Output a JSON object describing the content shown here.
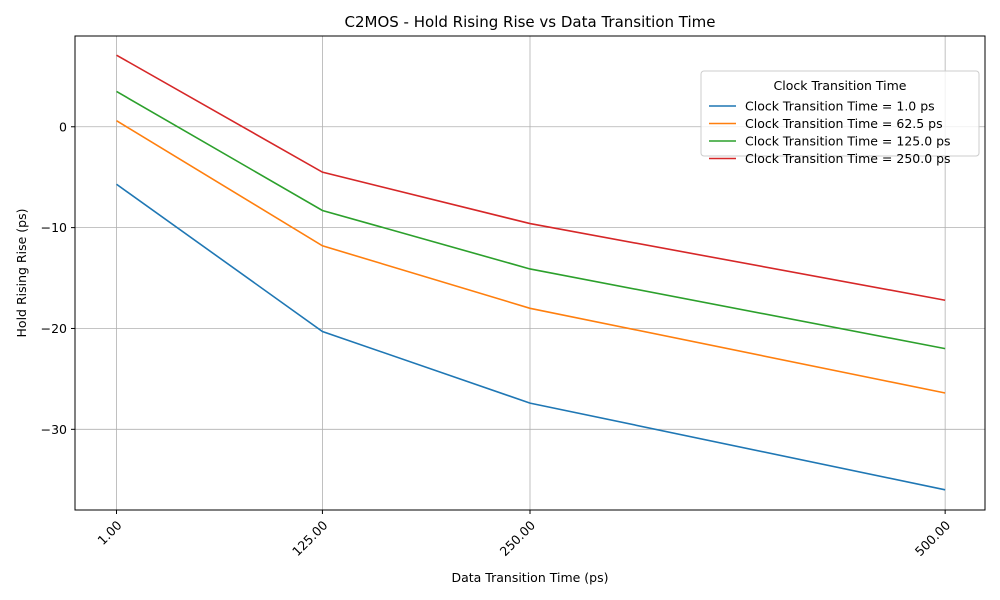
{
  "chart_data": {
    "type": "line",
    "title": "C2MOS - Hold Rising Rise vs Data Transition Time",
    "xlabel": "Data Transition Time (ps)",
    "ylabel": "Hold Rising Rise (ps)",
    "x": [
      1.0,
      125.0,
      250.0,
      500.0
    ],
    "x_tick_labels": [
      "1.00",
      "125.00",
      "250.00",
      "500.00"
    ],
    "xlim": [
      -24,
      524
    ],
    "ylim": [
      -38.0,
      9.0
    ],
    "y_ticks": [
      -30,
      -20,
      -10,
      0
    ],
    "y_tick_labels": [
      "−30",
      "−20",
      "−10",
      "0"
    ],
    "grid": true,
    "legend_title": "Clock Transition Time",
    "legend_position": "top-right",
    "series": [
      {
        "name": "Clock Transition Time = 1.0 ps",
        "color": "#1f77b4",
        "values": [
          -5.7,
          -20.3,
          -27.4,
          -36.0
        ]
      },
      {
        "name": "Clock Transition Time = 62.5 ps",
        "color": "#ff7f0e",
        "values": [
          0.6,
          -11.8,
          -18.0,
          -26.4
        ]
      },
      {
        "name": "Clock Transition Time = 125.0 ps",
        "color": "#2ca02c",
        "values": [
          3.5,
          -8.3,
          -14.1,
          -22.0
        ]
      },
      {
        "name": "Clock Transition Time = 250.0 ps",
        "color": "#d62728",
        "values": [
          7.1,
          -4.5,
          -9.6,
          -17.2
        ]
      }
    ]
  }
}
